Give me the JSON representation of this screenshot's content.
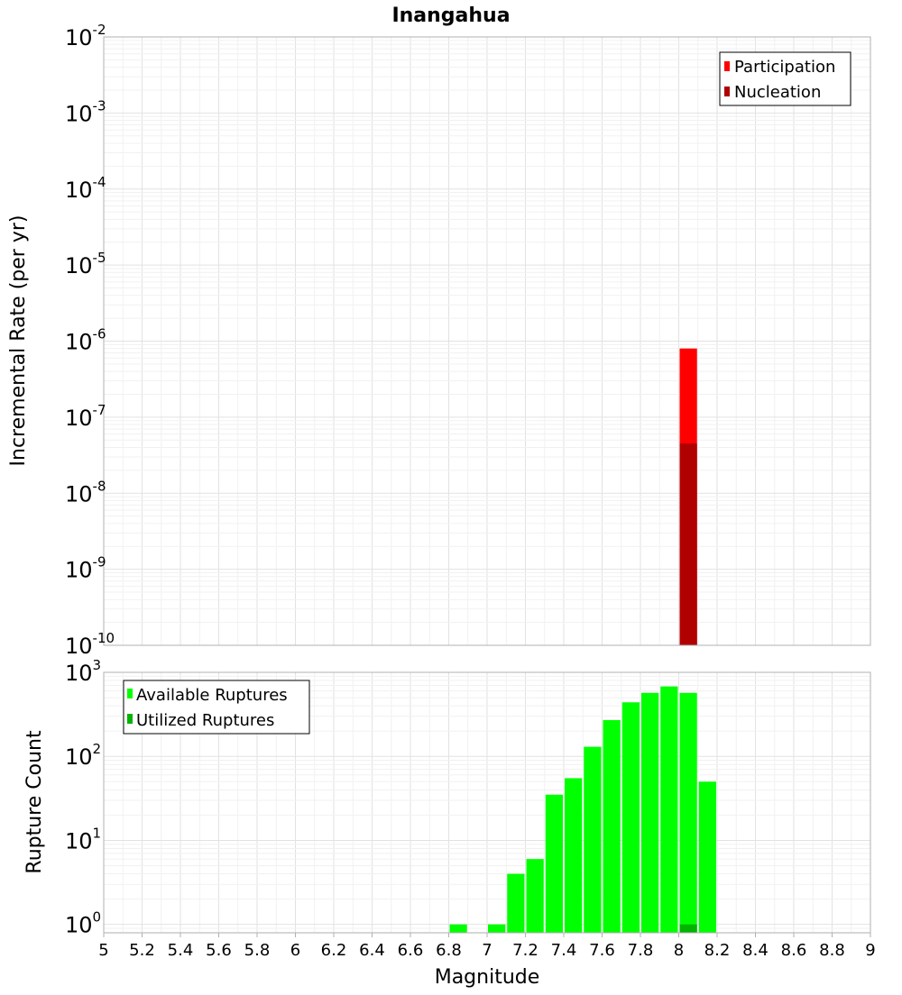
{
  "chart_data": [
    {
      "type": "bar",
      "title": "Inangahua",
      "xlabel": "",
      "ylabel": "Incremental Rate (per yr)",
      "y_scale": "log",
      "ylim_exponents": [
        -10,
        -2
      ],
      "y_tick_base": "10",
      "y_tick_exponents": [
        "-2",
        "-3",
        "-4",
        "-5",
        "-6",
        "-7",
        "-8",
        "-9",
        "-10"
      ],
      "xlim": [
        5,
        9
      ],
      "grid": true,
      "legend_position": "top-right",
      "series": [
        {
          "name": "Participation",
          "color": "#ff0000",
          "points": [
            {
              "x": 8.05,
              "y": 8e-07
            }
          ]
        },
        {
          "name": "Nucleation",
          "color": "#b00000",
          "points": [
            {
              "x": 8.05,
              "y": 4.5e-08
            }
          ]
        }
      ]
    },
    {
      "type": "bar",
      "xlabel": "Magnitude",
      "ylabel": "Rupture Count",
      "y_scale": "log",
      "ylim_exponents": [
        -0.1,
        3
      ],
      "y_tick_base": "10",
      "y_tick_exponents": [
        "3",
        "2",
        "1",
        "0"
      ],
      "xlim": [
        5,
        9
      ],
      "x_ticks": [
        "5",
        "5.2",
        "5.4",
        "5.6",
        "5.8",
        "6",
        "6.2",
        "6.4",
        "6.6",
        "6.8",
        "7",
        "7.2",
        "7.4",
        "7.6",
        "7.8",
        "8",
        "8.2",
        "8.4",
        "8.6",
        "8.8",
        "9"
      ],
      "grid": true,
      "legend_position": "top-left",
      "series": [
        {
          "name": "Available Ruptures",
          "color": "#00ff00",
          "points": [
            {
              "x": 6.85,
              "y": 1
            },
            {
              "x": 7.05,
              "y": 1
            },
            {
              "x": 7.15,
              "y": 4
            },
            {
              "x": 7.25,
              "y": 6
            },
            {
              "x": 7.35,
              "y": 35
            },
            {
              "x": 7.45,
              "y": 55
            },
            {
              "x": 7.55,
              "y": 130
            },
            {
              "x": 7.65,
              "y": 270
            },
            {
              "x": 7.75,
              "y": 440
            },
            {
              "x": 7.85,
              "y": 570
            },
            {
              "x": 7.95,
              "y": 680
            },
            {
              "x": 8.05,
              "y": 570
            },
            {
              "x": 8.15,
              "y": 50
            }
          ]
        },
        {
          "name": "Utilized Ruptures",
          "color": "#00b400",
          "points": [
            {
              "x": 8.05,
              "y": 1
            }
          ]
        }
      ]
    }
  ]
}
